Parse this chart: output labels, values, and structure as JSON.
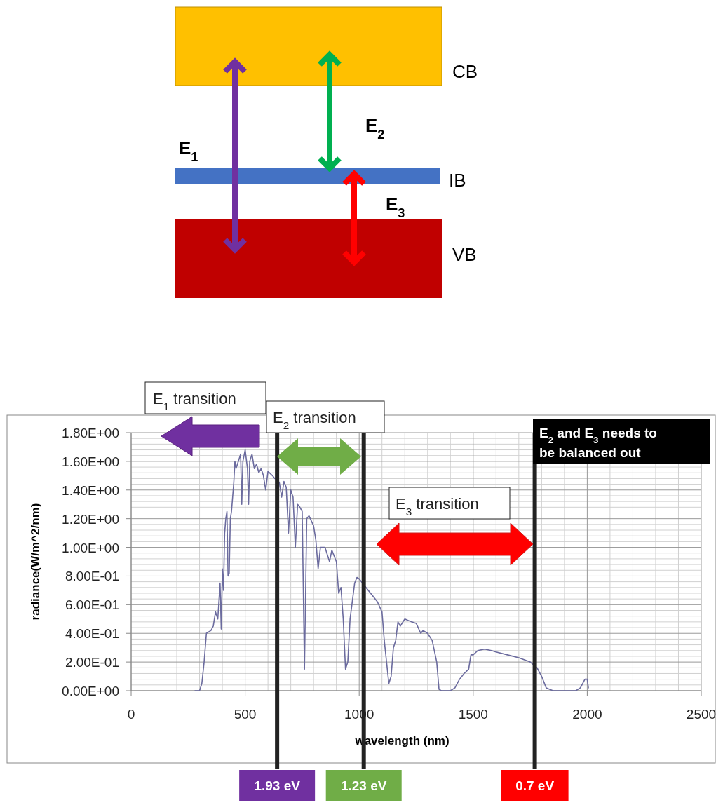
{
  "chart_data": {
    "type": "line",
    "xlabel": "wavelength (nm)",
    "ylabel": "radiance(W/m^2/nm)",
    "xlim": [
      0,
      2500
    ],
    "xticks": [
      0,
      500,
      1000,
      1500,
      2000,
      2500
    ],
    "ylim": [
      0,
      1.8
    ],
    "yticks": [
      {
        "value": 0,
        "label": "0.00E+00"
      },
      {
        "value": 0.2,
        "label": "2.00E-01"
      },
      {
        "value": 0.4,
        "label": "4.00E-01"
      },
      {
        "value": 0.6,
        "label": "6.00E-01"
      },
      {
        "value": 0.8,
        "label": "8.00E-01"
      },
      {
        "value": 1,
        "label": "1.00E+00"
      },
      {
        "value": 1.2,
        "label": "1.20E+00"
      },
      {
        "value": 1.4,
        "label": "1.40E+00"
      },
      {
        "value": 1.6,
        "label": "1.60E+00"
      },
      {
        "value": 1.8,
        "label": "1.80E+00"
      }
    ],
    "grid": true,
    "x": [
      280,
      300,
      310,
      320,
      330,
      350,
      360,
      370,
      380,
      390,
      395,
      400,
      405,
      410,
      415,
      420,
      425,
      430,
      435,
      440,
      450,
      455,
      460,
      470,
      480,
      485,
      490,
      500,
      510,
      515,
      520,
      530,
      540,
      550,
      560,
      570,
      580,
      590,
      600,
      620,
      630,
      640,
      650,
      660,
      670,
      680,
      690,
      700,
      710,
      720,
      730,
      740,
      750,
      760,
      770,
      780,
      800,
      810,
      820,
      830,
      850,
      870,
      880,
      900,
      910,
      920,
      930,
      940,
      950,
      960,
      980,
      990,
      1000,
      1020,
      1040,
      1060,
      1080,
      1100,
      1110,
      1120,
      1130,
      1140,
      1150,
      1160,
      1170,
      1180,
      1200,
      1230,
      1250,
      1270,
      1280,
      1300,
      1320,
      1340,
      1350,
      1360,
      1400,
      1420,
      1440,
      1460,
      1480,
      1490,
      1500,
      1520,
      1550,
      1580,
      1600,
      1650,
      1700,
      1750,
      1780,
      1800,
      1820,
      1850,
      1950,
      1970,
      1990,
      2000,
      2005
    ],
    "series": [
      {
        "color": "#6b6b9e",
        "values": [
          0,
          0,
          0.05,
          0.2,
          0.4,
          0.42,
          0.45,
          0.55,
          0.5,
          0.75,
          0.43,
          0.85,
          0.7,
          1.1,
          1.2,
          1.25,
          0.8,
          0.82,
          1.2,
          1.25,
          1.45,
          1.6,
          1.55,
          1.6,
          1.65,
          1.3,
          1.6,
          1.68,
          1.55,
          1.3,
          1.6,
          1.65,
          1.55,
          1.58,
          1.52,
          1.55,
          1.5,
          1.4,
          1.53,
          1.5,
          1.48,
          1.48,
          1.45,
          1.35,
          1.46,
          1.42,
          1.1,
          1.4,
          1.35,
          1,
          1.3,
          1.28,
          1.25,
          0.15,
          1.2,
          1.22,
          1.15,
          1.05,
          0.85,
          1,
          1,
          0.9,
          0.98,
          0.9,
          0.68,
          0.72,
          0.5,
          0.15,
          0.2,
          0.5,
          0.75,
          0.79,
          0.78,
          0.74,
          0.7,
          0.66,
          0.62,
          0.55,
          0.35,
          0.2,
          0.05,
          0.1,
          0.3,
          0.35,
          0.48,
          0.45,
          0.5,
          0.48,
          0.47,
          0.4,
          0.42,
          0.4,
          0.35,
          0.2,
          0.01,
          0,
          0,
          0.02,
          0.08,
          0.12,
          0.15,
          0.25,
          0.25,
          0.28,
          0.29,
          0.28,
          0.27,
          0.25,
          0.23,
          0.2,
          0.16,
          0.1,
          0.02,
          0,
          0,
          0.02,
          0.08,
          0.08,
          0.02
        ]
      }
    ],
    "ref_lines": [
      {
        "axis": "x",
        "value": 640,
        "label": "1.93 eV",
        "color": "#222222"
      },
      {
        "axis": "x",
        "value": 1020,
        "label": "1.23 eV",
        "color": "#222222"
      },
      {
        "axis": "x",
        "value": 1770,
        "label": "0.7 eV",
        "color": "#222222"
      }
    ],
    "annotations": [
      "CB",
      "IB",
      "VB",
      "E$_{1}$",
      "E$_{2}$",
      "E$_{3}$",
      "E$_{1}$ transition",
      "E$_{2}$ transition",
      "E$_{3}$ transition",
      "E$_{2}$ and E$_{3}$ needs to be balanced out"
    ]
  }
}
